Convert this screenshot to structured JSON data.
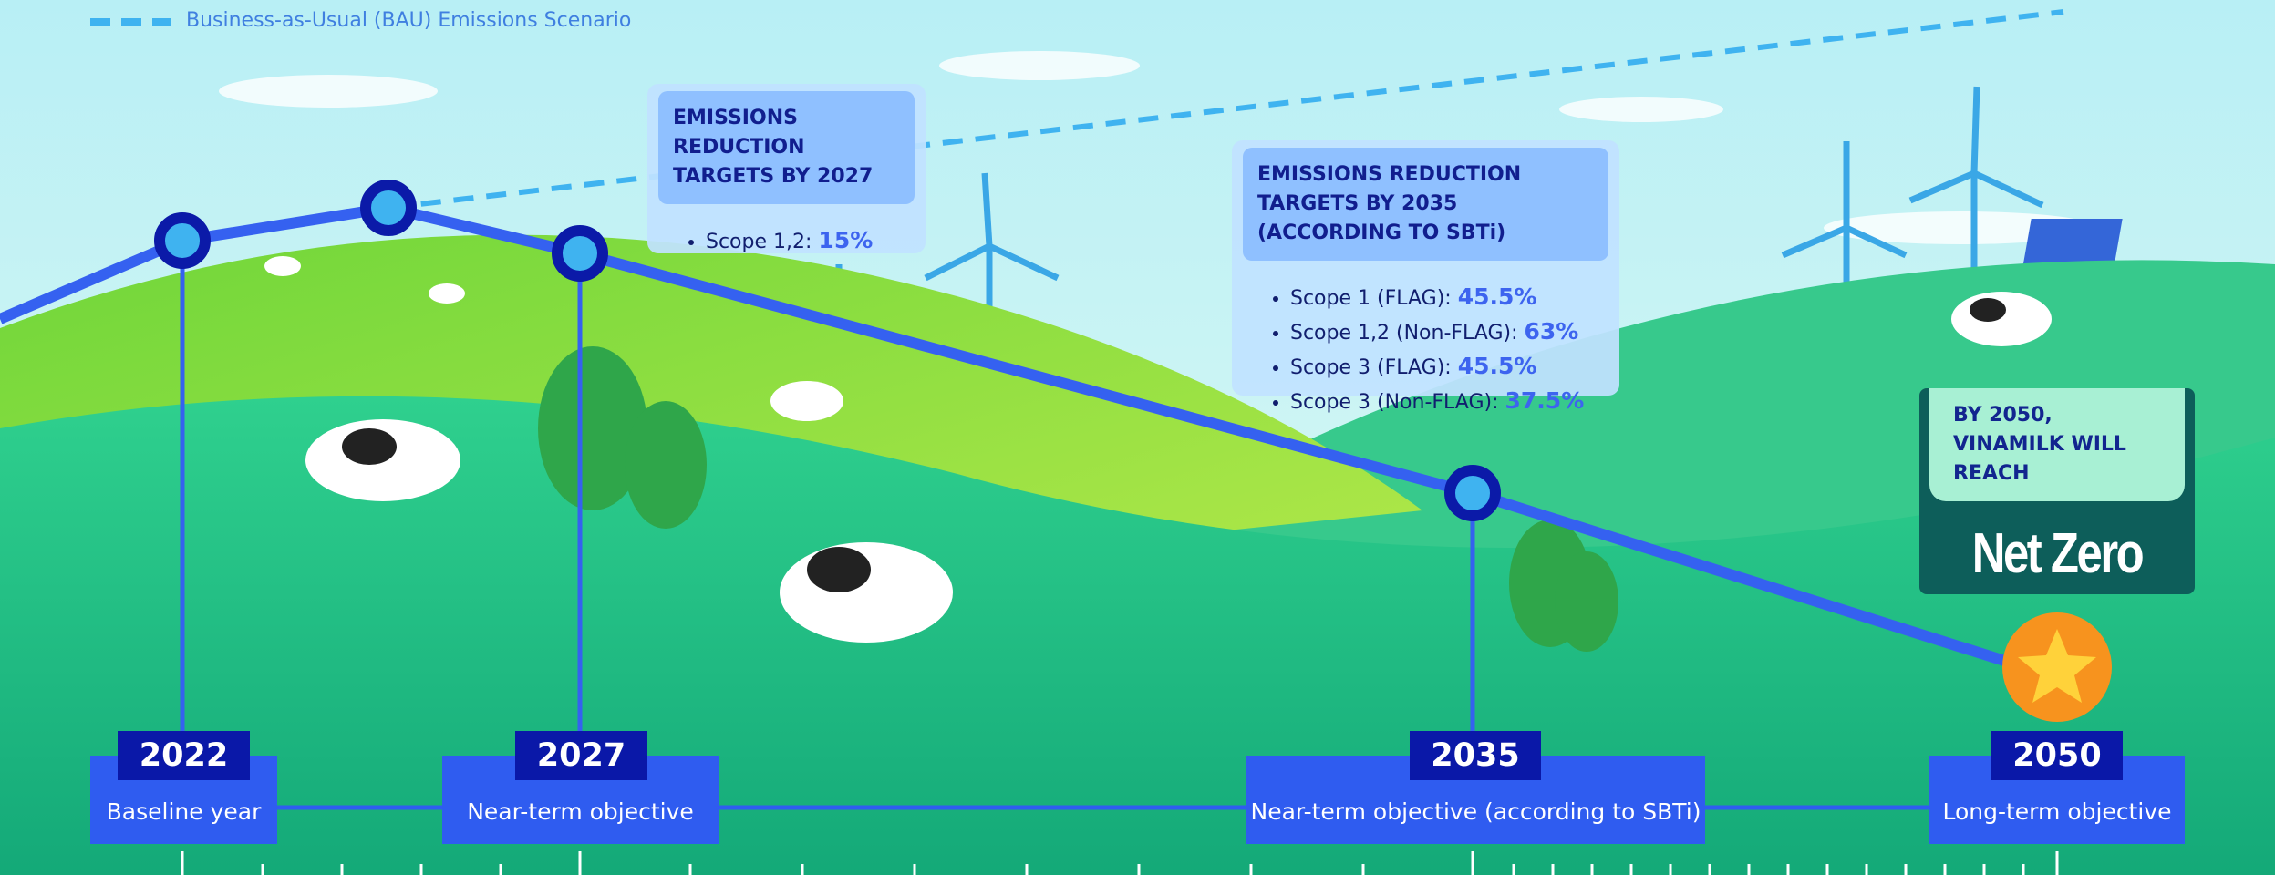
{
  "legend": {
    "bau": "Business-as-Usual (BAU) Emissions Scenario"
  },
  "target_2027": {
    "title": "EMISSIONS REDUCTION TARGETS BY 2027",
    "items": [
      {
        "label": "Scope 1,2:",
        "value": "15%"
      }
    ]
  },
  "target_2035": {
    "title": "EMISSIONS REDUCTION TARGETS BY 2035 (ACCORDING TO SBTi)",
    "items": [
      {
        "label": "Scope 1 (FLAG):",
        "value": "45.5%"
      },
      {
        "label": "Scope 1,2 (Non-FLAG):",
        "value": "63%"
      },
      {
        "label": "Scope 3 (FLAG):",
        "value": "45.5%"
      },
      {
        "label": "Scope 3 (Non-FLAG):",
        "value": "37.5%"
      }
    ]
  },
  "net_zero": {
    "title": "BY 2050, VINAMILK WILL REACH",
    "value": "Net Zero"
  },
  "milestones": [
    {
      "year": "2022",
      "label": "Baseline year"
    },
    {
      "year": "2027",
      "label": "Near-term objective"
    },
    {
      "year": "2035",
      "label": "Near-term objective (according to SBTi)"
    },
    {
      "year": "2050",
      "label": "Long-term objective"
    }
  ]
}
